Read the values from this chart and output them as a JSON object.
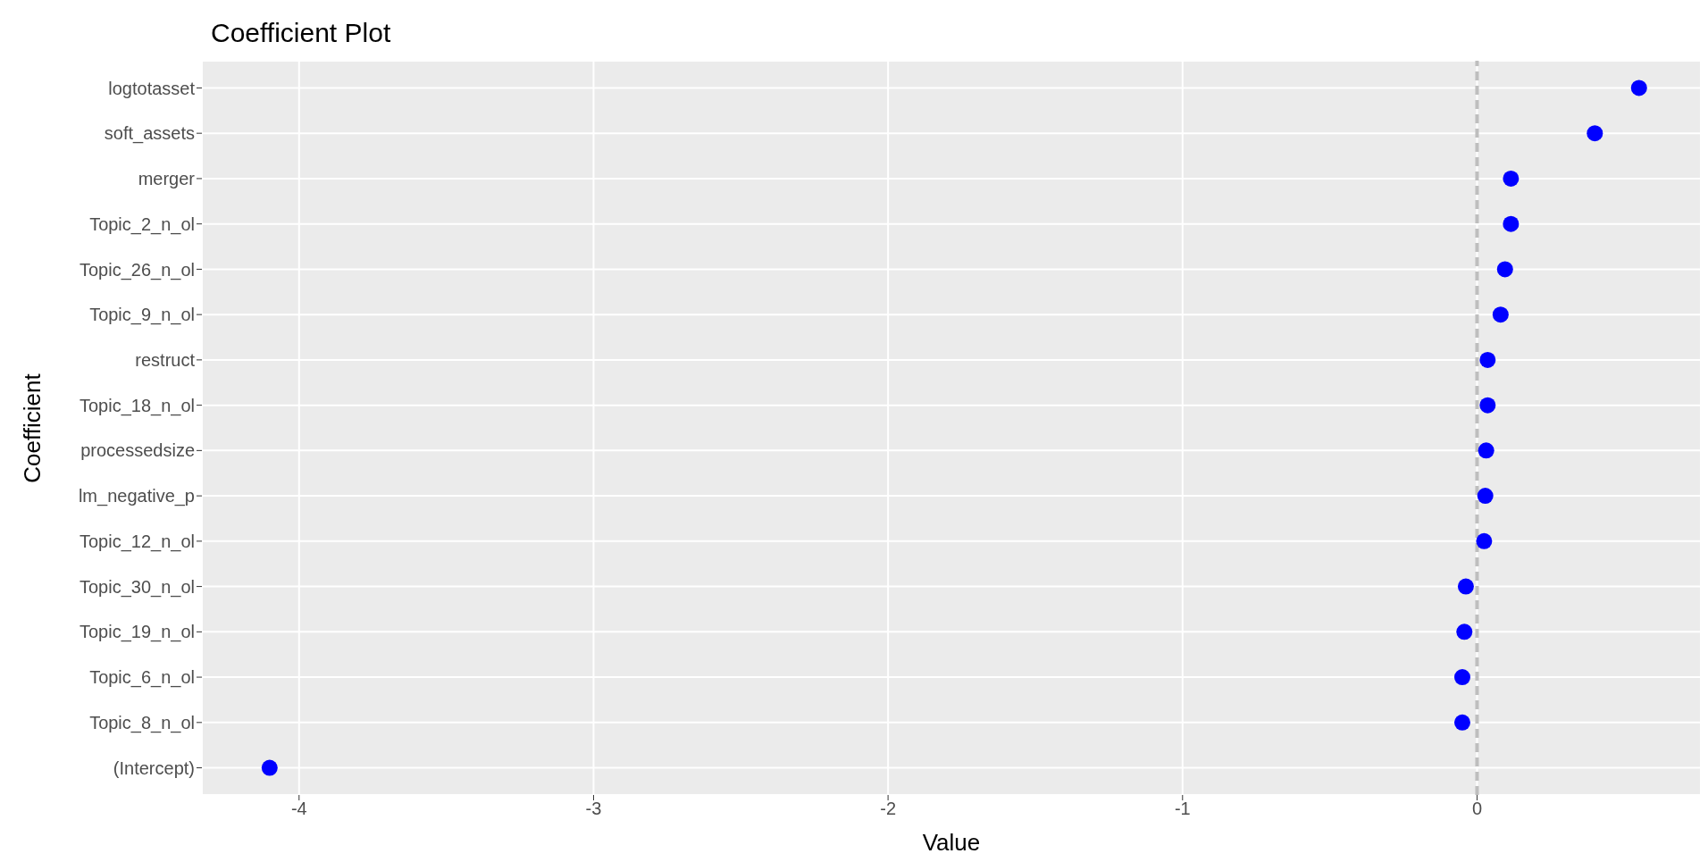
{
  "chart_data": {
    "type": "scatter",
    "orientation": "horizontal",
    "title": "Coefficient Plot",
    "xlabel": "Value",
    "ylabel": "Coefficient",
    "categories": [
      "logtotasset",
      "soft_assets",
      "merger",
      "Topic_2_n_ol",
      "Topic_26_n_ol",
      "Topic_9_n_ol",
      "restruct",
      "Topic_18_n_ol",
      "processedsize",
      "lm_negative_p",
      "Topic_12_n_ol",
      "Topic_30_n_ol",
      "Topic_19_n_ol",
      "Topic_6_n_ol",
      "Topic_8_n_ol",
      "(Intercept)"
    ],
    "series": [
      {
        "color": "#0000ff",
        "values": [
          0.55,
          0.4,
          0.115,
          0.115,
          0.095,
          0.08,
          0.036,
          0.036,
          0.031,
          0.028,
          0.024,
          -0.038,
          -0.043,
          -0.05,
          -0.05,
          -4.1
        ]
      }
    ],
    "xlim": [
      -4.33,
      0.76
    ],
    "xticks": [
      -4,
      -3,
      -2,
      -1,
      0
    ],
    "grid": true,
    "marker": "circle",
    "ref_lines": [
      {
        "axis": "x",
        "value": 0,
        "color": "#bebebe",
        "line_style": "dashed"
      }
    ]
  }
}
